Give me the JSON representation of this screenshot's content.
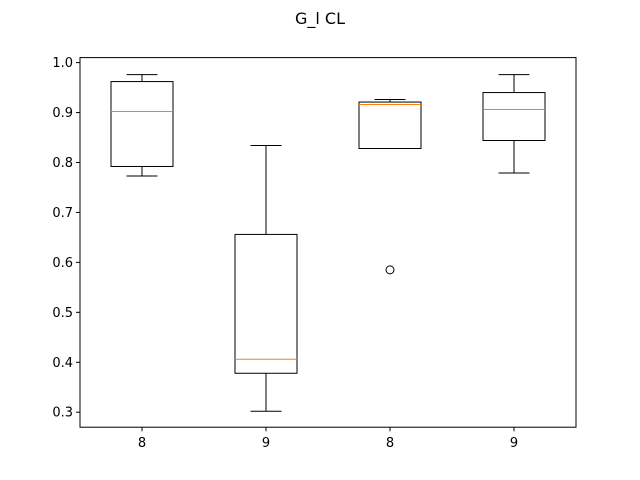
{
  "chart_data": {
    "type": "box",
    "title": "G_l CL",
    "xlabel": "",
    "ylabel": "",
    "categories": [
      "8",
      "9",
      "8",
      "9"
    ],
    "ylim": [
      0.27,
      1.01
    ],
    "yticks": [
      0.3,
      0.4,
      0.5,
      0.6,
      0.7,
      0.8,
      0.9,
      1.0
    ],
    "ytick_labels": [
      "0.3",
      "0.4",
      "0.5",
      "0.6",
      "0.7",
      "0.8",
      "0.9",
      "1.0"
    ],
    "grid": false,
    "boxes": [
      {
        "whisker_low": 0.773,
        "q1": 0.792,
        "median": 0.902,
        "q3": 0.962,
        "whisker_high": 0.976,
        "outliers": []
      },
      {
        "whisker_low": 0.302,
        "q1": 0.378,
        "median": 0.406,
        "q3": 0.656,
        "whisker_high": 0.834,
        "outliers": []
      },
      {
        "whisker_low": 0.828,
        "q1": 0.828,
        "median": 0.916,
        "q3": 0.921,
        "whisker_high": 0.926,
        "outliers": [
          0.585
        ]
      },
      {
        "whisker_low": 0.779,
        "q1": 0.844,
        "median": 0.906,
        "q3": 0.94,
        "whisker_high": 0.976,
        "outliers": []
      }
    ],
    "colors": {
      "box": "#000000",
      "median": "#ff7f0e",
      "axes": "#000000"
    }
  }
}
